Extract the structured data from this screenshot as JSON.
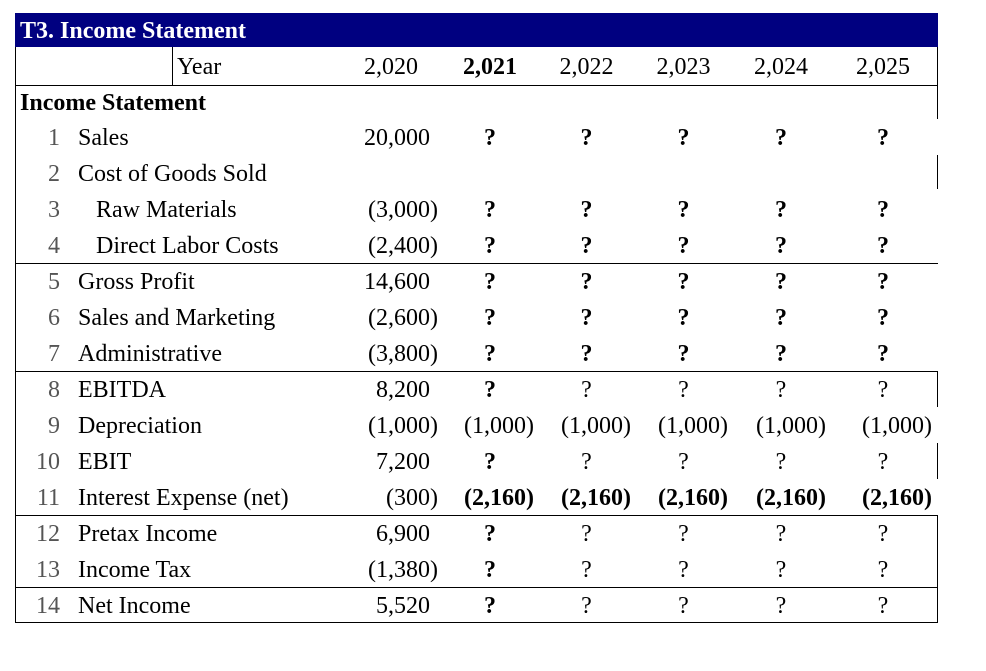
{
  "header": {
    "title": "T3. Income Statement",
    "year_label": "Year",
    "years": [
      "2,020",
      "2,021",
      "2,022",
      "2,023",
      "2,024",
      "2,025"
    ]
  },
  "section": "Income Statement",
  "rows": [
    {
      "num": "1",
      "label": "Sales",
      "values": [
        "20,000",
        "?",
        "?",
        "?",
        "?",
        "?"
      ]
    },
    {
      "num": "2",
      "label": "Cost of Goods Sold"
    },
    {
      "num": "3",
      "label": "Raw Materials",
      "values": [
        "(3,000)",
        "?",
        "?",
        "?",
        "?",
        "?"
      ]
    },
    {
      "num": "4",
      "label": "Direct Labor Costs",
      "values": [
        "(2,400)",
        "?",
        "?",
        "?",
        "?",
        "?"
      ]
    },
    {
      "num": "5",
      "label": "Gross Profit",
      "values": [
        "14,600",
        "?",
        "?",
        "?",
        "?",
        "?"
      ]
    },
    {
      "num": "6",
      "label": "Sales and Marketing",
      "values": [
        "(2,600)",
        "?",
        "?",
        "?",
        "?",
        "?"
      ]
    },
    {
      "num": "7",
      "label": "Administrative",
      "values": [
        "(3,800)",
        "?",
        "?",
        "?",
        "?",
        "?"
      ]
    },
    {
      "num": "8",
      "label": "EBITDA",
      "values": [
        "8,200",
        "?",
        "?",
        "?",
        "?",
        "?"
      ]
    },
    {
      "num": "9",
      "label": "Depreciation",
      "values": [
        "(1,000)",
        "(1,000)",
        "(1,000)",
        "(1,000)",
        "(1,000)",
        "(1,000)"
      ]
    },
    {
      "num": "10",
      "label": "EBIT",
      "values": [
        "7,200",
        "?",
        "?",
        "?",
        "?",
        "?"
      ]
    },
    {
      "num": "11",
      "label": "Interest Expense (net)",
      "values": [
        "(300)",
        "(2,160)",
        "(2,160)",
        "(2,160)",
        "(2,160)",
        "(2,160)"
      ]
    },
    {
      "num": "12",
      "label": "Pretax Income",
      "values": [
        "6,900",
        "?",
        "?",
        "?",
        "?",
        "?"
      ]
    },
    {
      "num": "13",
      "label": "Income Tax",
      "values": [
        "(1,380)",
        "?",
        "?",
        "?",
        "?",
        "?"
      ]
    },
    {
      "num": "14",
      "label": "Net Income",
      "values": [
        "5,520",
        "?",
        "?",
        "?",
        "?",
        "?"
      ]
    }
  ]
}
